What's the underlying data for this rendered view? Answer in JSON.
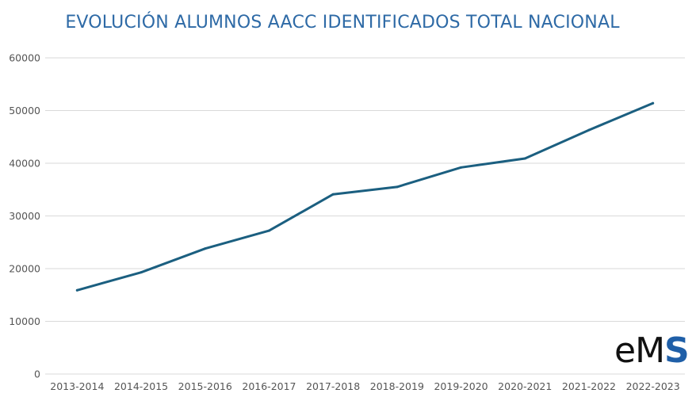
{
  "chart_data": {
    "type": "line",
    "title": "EVOLUCIÓN ALUMNOS AACC IDENTIFICADOS TOTAL NACIONAL",
    "categories": [
      "2013-2014",
      "2014-2015",
      "2015-2016",
      "2016-2017",
      "2017-2018",
      "2018-2019",
      "2019-2020",
      "2020-2021",
      "2021-2022",
      "2022-2023"
    ],
    "series": [
      {
        "values": [
          15900,
          19300,
          23800,
          27200,
          34100,
          35500,
          39200,
          40900,
          46300,
          51400
        ],
        "color": "#1b5f80"
      }
    ],
    "ylim": [
      0,
      60000
    ],
    "yticks": [
      "0",
      "10000",
      "20000",
      "30000",
      "40000",
      "50000",
      "60000"
    ],
    "grid": true,
    "legend": "none"
  },
  "logo": {
    "e": "e",
    "m": "M",
    "s": "S"
  }
}
